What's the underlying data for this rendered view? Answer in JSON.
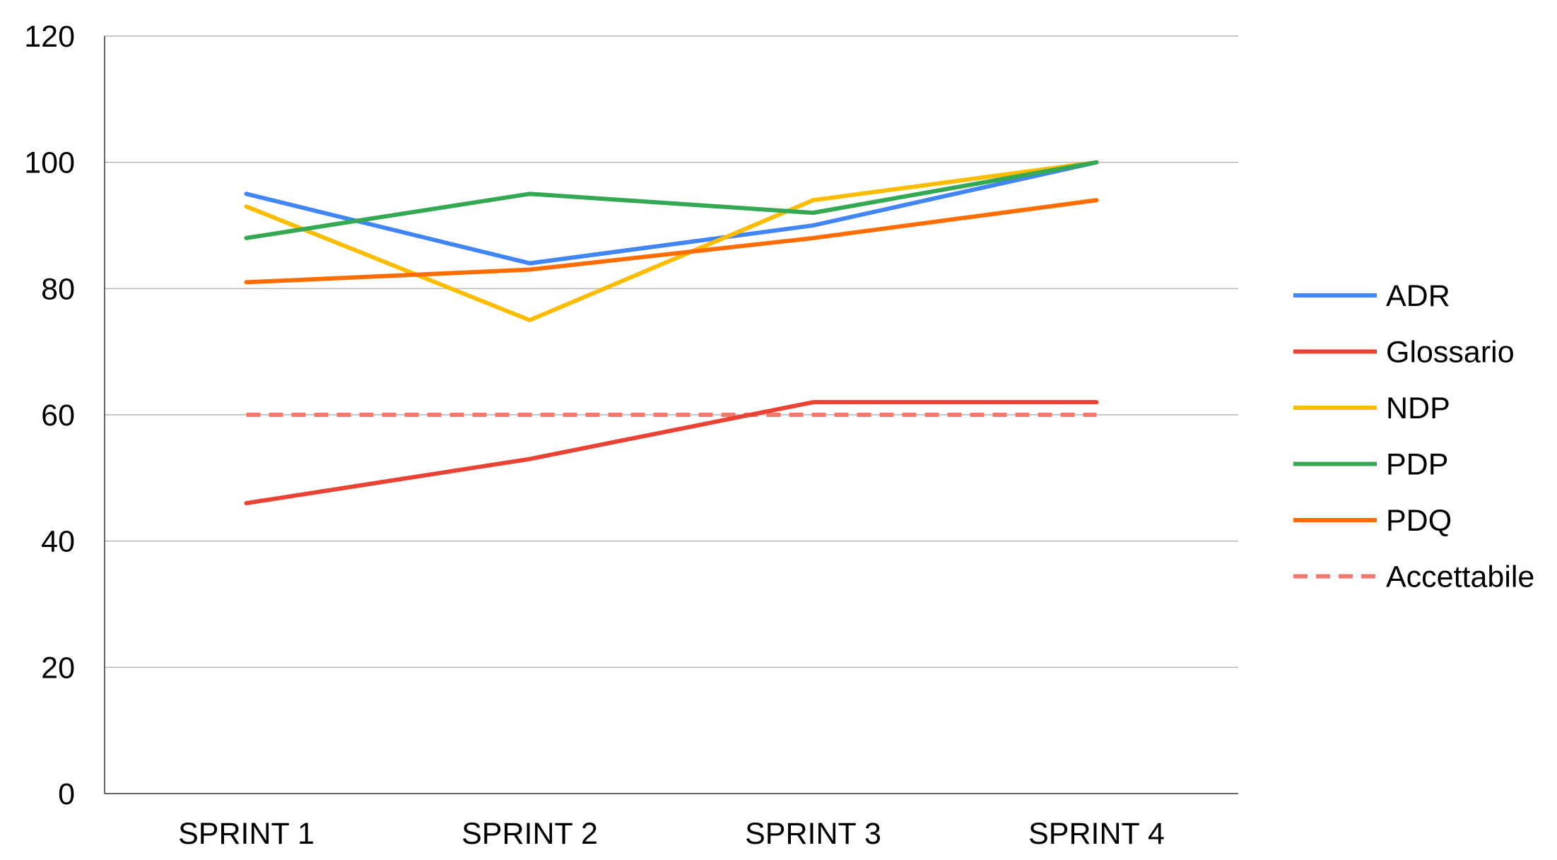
{
  "chart_data": {
    "type": "line",
    "categories": [
      "SPRINT 1",
      "SPRINT 2",
      "SPRINT 3",
      "SPRINT 4"
    ],
    "ylim": [
      0,
      120
    ],
    "yticks": [
      0,
      20,
      40,
      60,
      80,
      100,
      120
    ],
    "grid": true,
    "legend_position": "right",
    "series": [
      {
        "name": "ADR",
        "values": [
          95,
          84,
          90,
          100
        ],
        "color": "#4285f4",
        "dashed": false
      },
      {
        "name": "Glossario",
        "values": [
          46,
          53,
          62,
          62
        ],
        "color": "#ea4335",
        "dashed": false
      },
      {
        "name": "NDP",
        "values": [
          93,
          75,
          94,
          100
        ],
        "color": "#fbbc04",
        "dashed": false
      },
      {
        "name": "PDP",
        "values": [
          88,
          95,
          92,
          100
        ],
        "color": "#34a853",
        "dashed": false
      },
      {
        "name": "PDQ",
        "values": [
          81,
          83,
          88,
          94
        ],
        "color": "#ff6d01",
        "dashed": false
      },
      {
        "name": "Accettabile",
        "values": [
          60,
          60,
          60,
          60
        ],
        "color": "#ef7a72",
        "dashed": true
      }
    ]
  }
}
